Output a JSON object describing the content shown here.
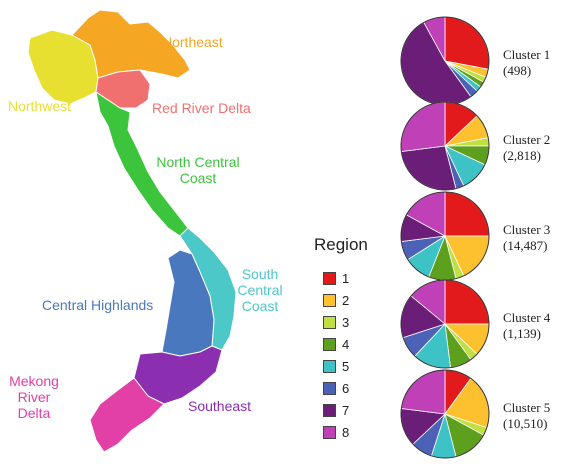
{
  "map": {
    "regions": [
      {
        "name": "Northeast",
        "color": "#F5A623"
      },
      {
        "name": "Northwest",
        "color": "#E8E030"
      },
      {
        "name": "Red River Delta",
        "color": "#F07070"
      },
      {
        "name": "North Central Coast",
        "line1": "North Central",
        "line2": "Coast",
        "color": "#3CC43C"
      },
      {
        "name": "South Central Coast",
        "line1": "South",
        "line2": "Central",
        "line3": "Coast",
        "color": "#4CC8C8"
      },
      {
        "name": "Central Highlands",
        "color": "#4A78BE"
      },
      {
        "name": "Southeast",
        "color": "#8C2EB0"
      },
      {
        "name": "Mekong River Delta",
        "line1": "Mekong",
        "line2": "River",
        "line3": "Delta",
        "color": "#E23FA7"
      }
    ]
  },
  "legend": {
    "title": "Region",
    "items": [
      {
        "label": "1",
        "color": "#E31A1C"
      },
      {
        "label": "2",
        "color": "#FDC02F"
      },
      {
        "label": "3",
        "color": "#BFE040"
      },
      {
        "label": "4",
        "color": "#5CA01E"
      },
      {
        "label": "5",
        "color": "#3DC3C6"
      },
      {
        "label": "6",
        "color": "#4C62B6"
      },
      {
        "label": "7",
        "color": "#6A1E78"
      },
      {
        "label": "8",
        "color": "#C040B8"
      }
    ]
  },
  "chart_data": {
    "type": "pie",
    "categories": [
      "1",
      "2",
      "3",
      "4",
      "5",
      "6",
      "7",
      "8"
    ],
    "series": [
      {
        "name": "Cluster 1",
        "count": "(498)",
        "values": [
          28,
          3,
          2,
          2,
          2,
          3,
          52,
          8
        ]
      },
      {
        "name": "Cluster 2",
        "count": "(2,818)",
        "values": [
          13,
          9,
          3,
          7,
          11,
          3,
          27,
          27
        ]
      },
      {
        "name": "Cluster 3",
        "count": "(14,487)",
        "values": [
          25,
          18,
          3,
          10,
          10,
          7,
          10,
          17
        ]
      },
      {
        "name": "Cluster 4",
        "count": "(1,139)",
        "values": [
          25,
          12,
          3,
          8,
          14,
          8,
          16,
          14
        ]
      },
      {
        "name": "Cluster 5",
        "count": "(10,510)",
        "values": [
          10,
          20,
          3,
          13,
          9,
          8,
          14,
          23
        ]
      }
    ]
  }
}
